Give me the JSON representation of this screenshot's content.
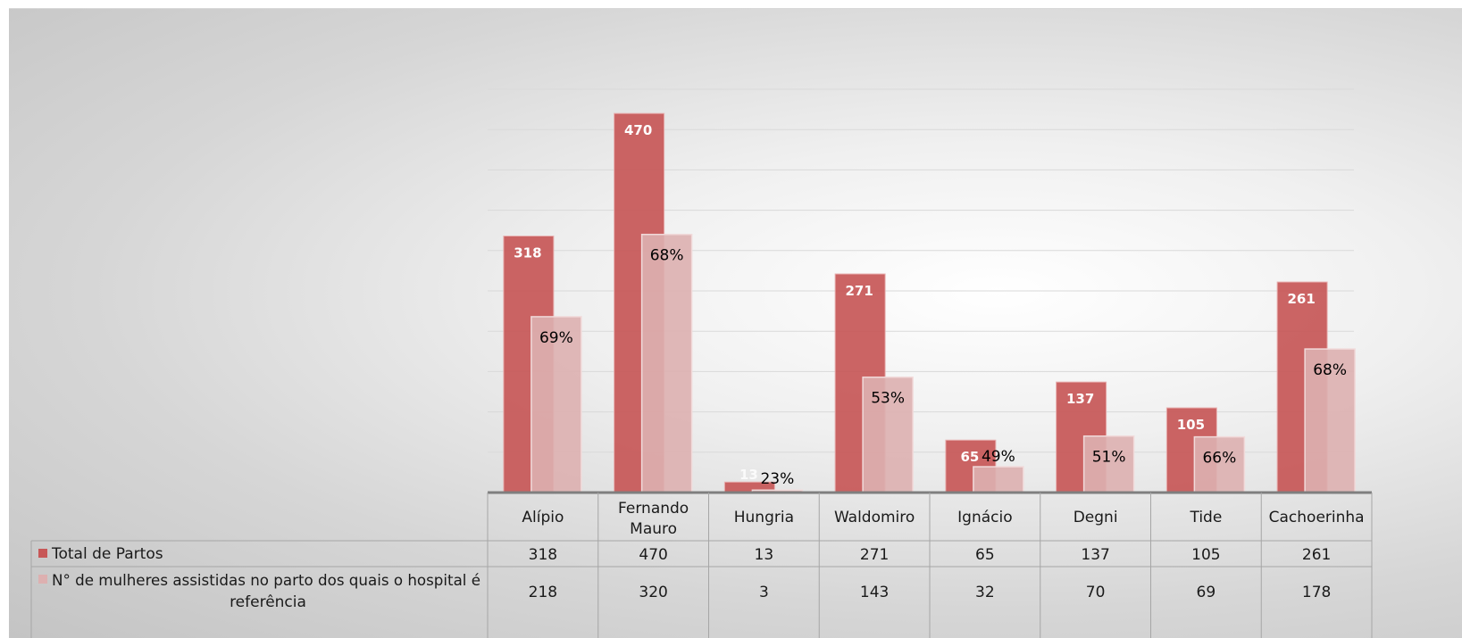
{
  "chart_data": {
    "type": "bar",
    "categories": [
      "Alípio",
      [
        "Fernando",
        "Mauro"
      ],
      "Hungria",
      "Waldomiro",
      "Ignácio",
      "Degni",
      "Tide",
      "Cachoerinha"
    ],
    "series": [
      {
        "name": "Total de Partos",
        "values": [
          318,
          470,
          13,
          271,
          65,
          137,
          105,
          261
        ],
        "color": "#c75757",
        "data_labels": [
          "318",
          "470",
          "13",
          "271",
          "65",
          "137",
          "105",
          "261"
        ]
      },
      {
        "name": [
          "N° de mulheres assistidas no parto dos quais o hospital é",
          "referência"
        ],
        "values": [
          218,
          320,
          3,
          143,
          32,
          70,
          69,
          178
        ],
        "color": "#ddb0b0",
        "data_labels": [
          "69%",
          "68%",
          "23%",
          "53%",
          "49%",
          "51%",
          "66%",
          "68%"
        ]
      }
    ],
    "ylim": [
      0,
      500
    ],
    "grid": true,
    "legend": "data-table"
  }
}
